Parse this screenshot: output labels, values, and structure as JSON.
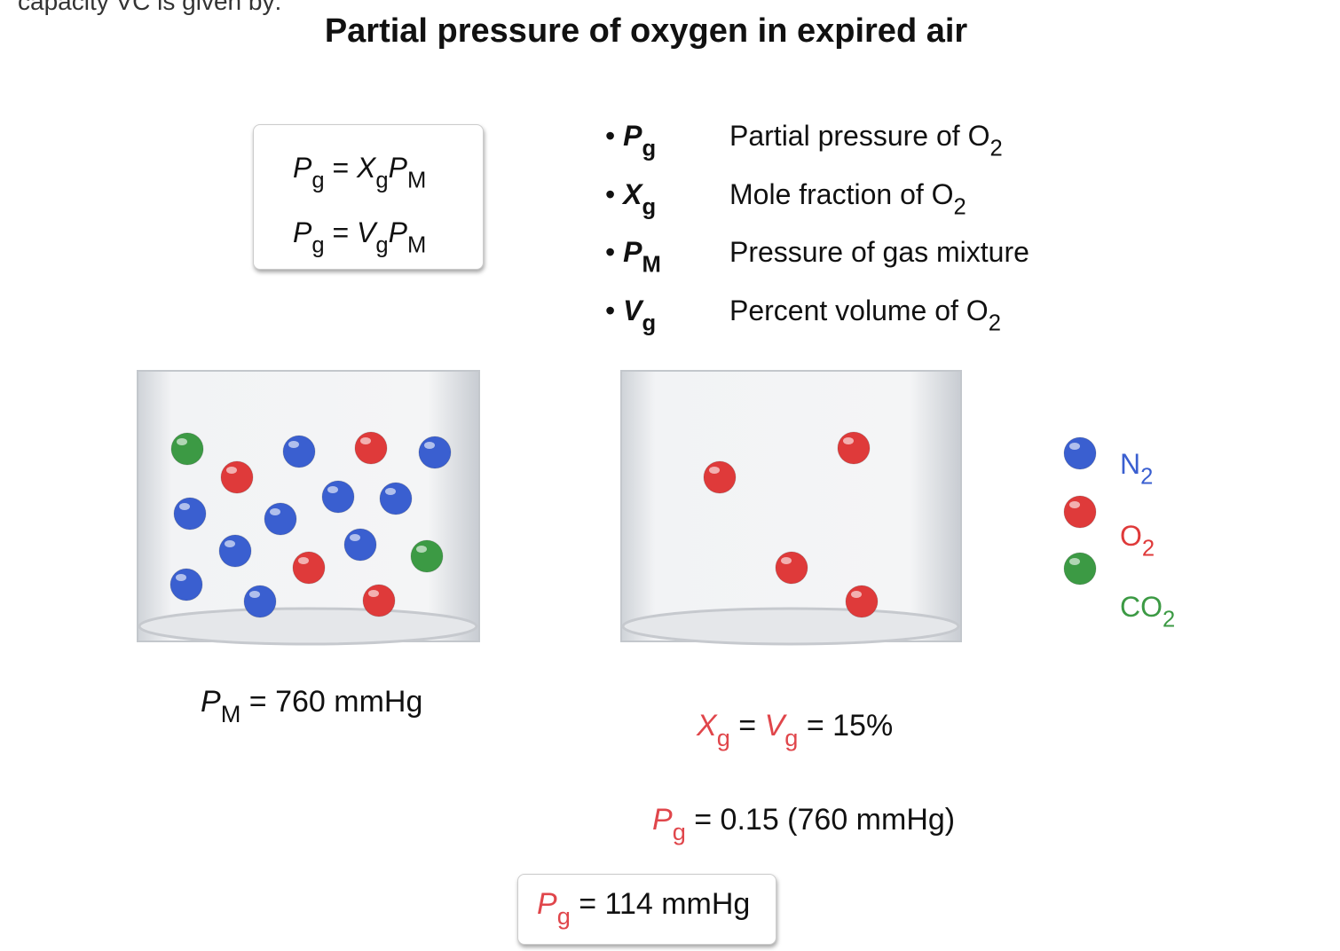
{
  "header": {
    "cutoff_text": "capacity VC is given by:",
    "title": "Partial pressure of oxygen in expired air"
  },
  "formula_box": {
    "lines": [
      [
        {
          "t": "P",
          "s": "g"
        },
        {
          "t": " = "
        },
        {
          "t": "X",
          "s": "g"
        },
        {
          "t": "P",
          "s": "M"
        }
      ],
      [
        {
          "t": "P",
          "s": "g"
        },
        {
          "t": " = "
        },
        {
          "t": "V",
          "s": "g"
        },
        {
          "t": "P",
          "s": "M"
        }
      ]
    ]
  },
  "definitions": [
    {
      "symbol": "P",
      "sub": "g",
      "text": "Partial pressure of O",
      "text_sub": "2"
    },
    {
      "symbol": "X",
      "sub": "g",
      "text": "Mole fraction of O",
      "text_sub": "2"
    },
    {
      "symbol": "P",
      "sub": "M",
      "text": "Pressure of gas mixture"
    },
    {
      "symbol": "V",
      "sub": "g",
      "text": "Percent volume of O",
      "text_sub": "2"
    }
  ],
  "left_container": {
    "label": [
      {
        "t": "P",
        "s": "M"
      },
      {
        "t": " = 760 mmHg"
      }
    ]
  },
  "right_container": {
    "labels": [
      [
        {
          "t": "X",
          "s": "g",
          "color": "#e0464b"
        },
        {
          "t": " = "
        },
        {
          "t": "V",
          "s": "g",
          "color": "#e0464b"
        },
        {
          "t": " = 15%"
        }
      ],
      [
        {
          "t": "P",
          "s": "g",
          "color": "#e0464b"
        },
        {
          "t": " = 0.15 (760 mmHg)"
        }
      ]
    ]
  },
  "legend": [
    {
      "name": "N",
      "sub": "2",
      "color": "#3a5fd0"
    },
    {
      "name": "O",
      "sub": "2",
      "color": "#df3a3a"
    },
    {
      "name": "CO",
      "sub": "2",
      "color": "#3c9a44"
    }
  ],
  "result_box": [
    {
      "t": "P",
      "s": "g",
      "color": "#e0464b"
    },
    {
      "t": " = 114 mmHg"
    }
  ]
}
